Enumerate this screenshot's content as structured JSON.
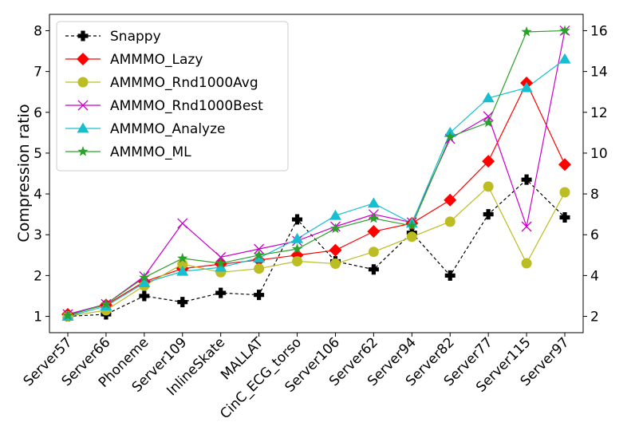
{
  "chart_data": {
    "type": "line",
    "title": "",
    "xlabel": "",
    "ylabel": "Compression ratio",
    "ylim": [
      0.6,
      8.4
    ],
    "y2lim": [
      1.2,
      16.8
    ],
    "yticks": [
      1,
      2,
      3,
      4,
      5,
      6,
      7,
      8
    ],
    "y2ticks": [
      2,
      4,
      6,
      8,
      10,
      12,
      14,
      16
    ],
    "grid": false,
    "legend_position": "upper-left",
    "categories": [
      "Server57",
      "Server66",
      "Phoneme",
      "Server109",
      "InlineSkate",
      "MALLAT",
      "CinC_ECG_torso",
      "Server106",
      "Server62",
      "Server94",
      "Server82",
      "Server77",
      "Server115",
      "Server97"
    ],
    "series": [
      {
        "name": "Snappy",
        "axis": "right",
        "color": "#000000",
        "marker": "plus",
        "line": "dashed",
        "values": [
          2.0,
          2.1,
          3.0,
          2.7,
          3.15,
          3.05,
          6.75,
          4.7,
          4.3,
          6.1,
          4.0,
          7.0,
          8.7,
          6.85
        ]
      },
      {
        "name": "AMMMO_Lazy",
        "axis": "left",
        "color": "#ff0000",
        "marker": "diamond",
        "line": "solid",
        "values": [
          1.05,
          1.28,
          1.85,
          2.17,
          2.28,
          2.38,
          2.5,
          2.62,
          3.08,
          3.28,
          3.85,
          4.8,
          6.72,
          4.72
        ]
      },
      {
        "name": "AMMMO_Rnd1000Avg",
        "axis": "left",
        "color": "#bcbd22",
        "marker": "circle",
        "line": "solid",
        "values": [
          1.0,
          1.15,
          1.75,
          2.28,
          2.08,
          2.17,
          2.35,
          2.29,
          2.58,
          2.95,
          3.32,
          4.18,
          2.3,
          4.04
        ]
      },
      {
        "name": "AMMMO_Rnd1000Best",
        "axis": "left",
        "color": "#cc00cc",
        "marker": "x",
        "line": "solid",
        "values": [
          1.05,
          1.3,
          1.98,
          3.28,
          2.45,
          2.65,
          2.85,
          3.2,
          3.5,
          3.3,
          5.35,
          5.9,
          3.2,
          8.0
        ]
      },
      {
        "name": "AMMMO_Analyze",
        "axis": "left",
        "color": "#17becf",
        "marker": "triangle",
        "line": "solid",
        "values": [
          1.0,
          1.25,
          1.82,
          2.1,
          2.2,
          2.43,
          2.9,
          3.47,
          3.77,
          3.28,
          5.5,
          6.35,
          6.6,
          7.3
        ]
      },
      {
        "name": "AMMMO_ML",
        "axis": "left",
        "color": "#2ca02c",
        "marker": "star",
        "line": "solid",
        "values": [
          1.02,
          1.3,
          1.95,
          2.42,
          2.3,
          2.5,
          2.65,
          3.15,
          3.4,
          3.22,
          5.4,
          5.75,
          7.97,
          8.0
        ]
      }
    ]
  }
}
